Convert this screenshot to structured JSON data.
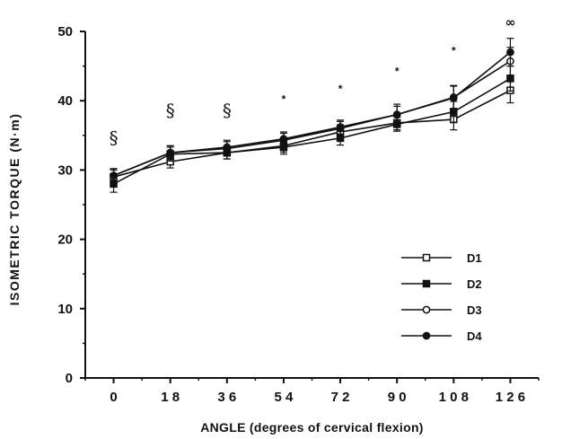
{
  "chart_data": {
    "type": "line",
    "xlabel": "ANGLE (degrees of cervical flexion)",
    "ylabel": "ISOMETRIC TORQUE (N·m)",
    "ylim": [
      0,
      50
    ],
    "yticks": [
      0,
      10,
      20,
      30,
      40,
      50
    ],
    "x": [
      0,
      18,
      36,
      54,
      72,
      90,
      108,
      126
    ],
    "xtick_labels": [
      "0",
      "1 8",
      "3 6",
      "5 4",
      "7 2",
      "9 0",
      "1 0 8",
      "1 2 6"
    ],
    "grid": false,
    "legend_position": "lower-right",
    "series": [
      {
        "name": "D1",
        "marker": "open-square",
        "values": [
          29.0,
          31.2,
          32.5,
          33.5,
          35.5,
          36.8,
          37.3,
          41.5
        ],
        "errors": [
          1.0,
          0.9,
          0.9,
          0.9,
          1.0,
          1.0,
          1.5,
          1.8
        ]
      },
      {
        "name": "D2",
        "marker": "filled-square",
        "values": [
          28.0,
          32.3,
          32.5,
          33.3,
          34.6,
          36.6,
          38.4,
          43.2
        ],
        "errors": [
          1.2,
          1.0,
          0.9,
          1.0,
          1.0,
          1.0,
          1.5,
          1.8
        ]
      },
      {
        "name": "D3",
        "marker": "open-circle",
        "values": [
          29.2,
          32.5,
          33.3,
          34.5,
          36.2,
          38.0,
          40.5,
          45.7
        ],
        "errors": [
          1.0,
          1.0,
          1.0,
          1.0,
          1.0,
          1.2,
          1.6,
          2.0
        ]
      },
      {
        "name": "D4",
        "marker": "filled-circle",
        "values": [
          29.2,
          32.5,
          33.1,
          34.3,
          36.0,
          38.0,
          40.4,
          47.0
        ],
        "errors": [
          1.0,
          1.0,
          1.0,
          1.0,
          1.0,
          1.5,
          1.8,
          2.0
        ]
      }
    ],
    "annotations": [
      {
        "x": 0,
        "text": "§",
        "y": 34.5
      },
      {
        "x": 18,
        "text": "§",
        "y": 38.5
      },
      {
        "x": 36,
        "text": "§",
        "y": 38.5
      },
      {
        "x": 54,
        "text": "*",
        "y": 40.5
      },
      {
        "x": 72,
        "text": "*",
        "y": 42.0
      },
      {
        "x": 90,
        "text": "*",
        "y": 44.5
      },
      {
        "x": 108,
        "text": "*",
        "y": 47.5
      },
      {
        "x": 126,
        "text": "∞",
        "y": 51.5
      }
    ]
  }
}
